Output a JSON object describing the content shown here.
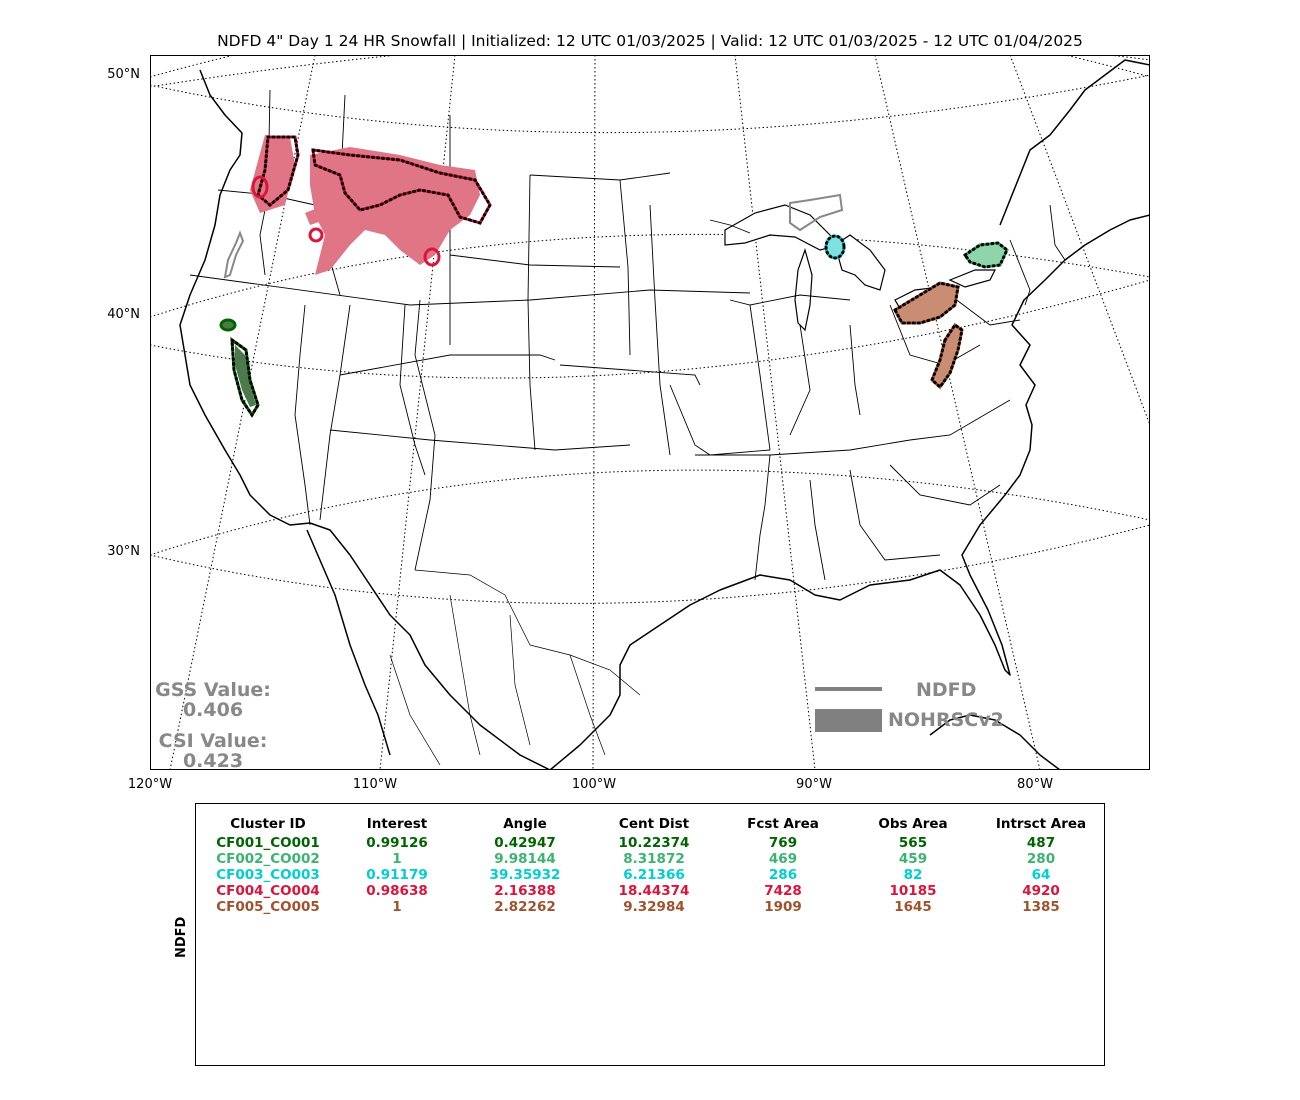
{
  "title": "NDFD 4\" Day 1 24 HR Snowfall | Initialized: 12 UTC 01/03/2025 | Valid: 12 UTC 01/03/2025 - 12 UTC 01/04/2025",
  "map": {
    "lat_labels": [
      "50°N",
      "40°N",
      "30°N"
    ],
    "lon_labels": [
      "120°W",
      "110°W",
      "100°W",
      "90°W",
      "80°W"
    ]
  },
  "scores": {
    "gss_label": "GSS Value:",
    "gss_value": "0.406",
    "csi_label": "CSI Value:",
    "csi_value": "0.423"
  },
  "legend": {
    "line_label": "NDFD",
    "fill_label": "NOHRSCv2",
    "color": "#808080"
  },
  "table": {
    "side_label": "NDFD",
    "headers": [
      "Cluster ID",
      "Interest",
      "Angle",
      "Cent Dist",
      "Fcst Area",
      "Obs Area",
      "Intrsct Area"
    ],
    "rows": [
      {
        "color": "#006400",
        "cells": [
          "CF001_CO001",
          "0.99126",
          "0.42947",
          "10.22374",
          "769",
          "565",
          "487"
        ]
      },
      {
        "color": "#3cb371",
        "cells": [
          "CF002_CO002",
          "1",
          "9.98144",
          "8.31872",
          "469",
          "459",
          "280"
        ]
      },
      {
        "color": "#00ced1",
        "cells": [
          "CF003_CO003",
          "0.91179",
          "39.35932",
          "6.21366",
          "286",
          "82",
          "64"
        ]
      },
      {
        "color": "#dc143c",
        "cells": [
          "CF004_CO004",
          "0.98638",
          "2.16388",
          "18.44374",
          "7428",
          "10185",
          "4920"
        ]
      },
      {
        "color": "#a0522d",
        "cells": [
          "CF005_CO005",
          "1",
          "2.82262",
          "9.32984",
          "1909",
          "1645",
          "1385"
        ]
      }
    ]
  },
  "clusters": [
    {
      "id": "CF001_CO001",
      "color": "#006400",
      "fill": "#4d7a4d"
    },
    {
      "id": "CF002_CO002",
      "color": "#3cb371",
      "fill": "#8fd4ab"
    },
    {
      "id": "CF003_CO003",
      "color": "#00ced1",
      "fill": "#7fe0e2"
    },
    {
      "id": "CF004_CO004",
      "color": "#dc143c",
      "fill": "#e07585"
    },
    {
      "id": "CF005_CO005",
      "color": "#a0522d",
      "fill": "#c98d74"
    }
  ]
}
